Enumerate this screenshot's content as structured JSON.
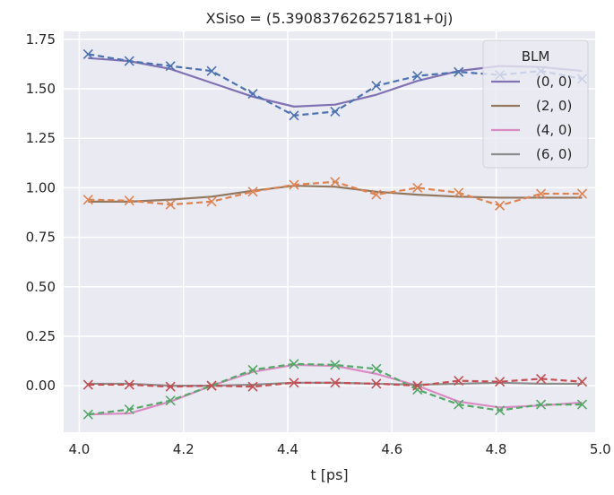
{
  "chart_data": {
    "type": "line",
    "title": "XSiso = (5.390837626257181+0j)",
    "xlabel": "t [ps]",
    "ylabel": "",
    "xlim": [
      3.97,
      4.99
    ],
    "ylim": [
      -0.235,
      1.79
    ],
    "x_ticks": [
      4.0,
      4.2,
      4.4,
      4.6,
      4.8,
      5.0
    ],
    "x_tick_labels": [
      "4.0",
      "4.2",
      "4.4",
      "4.6",
      "4.8",
      "5.0"
    ],
    "y_ticks": [
      0.0,
      0.25,
      0.5,
      0.75,
      1.0,
      1.25,
      1.5,
      1.75
    ],
    "y_tick_labels": [
      "0.00",
      "0.25",
      "0.50",
      "0.75",
      "1.00",
      "1.25",
      "1.50",
      "1.75"
    ],
    "grid": true,
    "background_color": "#eaeaf2",
    "legend": {
      "title": "BLM",
      "position": "top-right",
      "entries": [
        {
          "label": "(0, 0)",
          "color": "#8172b3"
        },
        {
          "label": "(2, 0)",
          "color": "#937860"
        },
        {
          "label": "(4, 0)",
          "color": "#da8bc3"
        },
        {
          "label": "(6, 0)",
          "color": "#8c8c8c"
        }
      ]
    },
    "x": [
      4.017,
      4.096,
      4.175,
      4.254,
      4.333,
      4.412,
      4.491,
      4.57,
      4.649,
      4.728,
      4.807,
      4.886,
      4.965
    ],
    "series": [
      {
        "name": "(0, 0)",
        "style": "solid",
        "color": "#8172b3",
        "values": [
          1.655,
          1.64,
          1.6,
          1.53,
          1.46,
          1.41,
          1.42,
          1.47,
          1.54,
          1.59,
          1.615,
          1.61,
          1.59
        ]
      },
      {
        "name": "",
        "style": "dashed-x",
        "color": "#4c72b0",
        "values": [
          1.675,
          1.64,
          1.615,
          1.59,
          1.475,
          1.365,
          1.385,
          1.515,
          1.565,
          1.585,
          1.57,
          1.59,
          1.55
        ]
      },
      {
        "name": "(2, 0)",
        "style": "solid",
        "color": "#937860",
        "values": [
          0.93,
          0.93,
          0.94,
          0.955,
          0.985,
          1.01,
          1.005,
          0.98,
          0.965,
          0.955,
          0.95,
          0.95,
          0.95
        ]
      },
      {
        "name": "",
        "style": "dashed-x",
        "color": "#dd8452",
        "values": [
          0.94,
          0.935,
          0.915,
          0.93,
          0.98,
          1.015,
          1.03,
          0.965,
          1.0,
          0.975,
          0.91,
          0.97,
          0.97
        ]
      },
      {
        "name": "(4, 0)",
        "style": "solid",
        "color": "#da8bc3",
        "values": [
          -0.145,
          -0.14,
          -0.08,
          0.0,
          0.07,
          0.105,
          0.1,
          0.06,
          0.0,
          -0.08,
          -0.11,
          -0.1,
          -0.085
        ]
      },
      {
        "name": "",
        "style": "dashed-x",
        "color": "#55a868",
        "values": [
          -0.145,
          -0.12,
          -0.075,
          0.0,
          0.08,
          0.11,
          0.105,
          0.085,
          -0.02,
          -0.095,
          -0.125,
          -0.095,
          -0.095
        ]
      },
      {
        "name": "(6, 0)",
        "style": "solid",
        "color": "#8c8c8c",
        "values": [
          0.01,
          0.01,
          0.0,
          0.0,
          0.005,
          0.015,
          0.015,
          0.01,
          0.005,
          0.01,
          0.015,
          0.01,
          0.01
        ]
      },
      {
        "name": "",
        "style": "dashed-x",
        "color": "#c44e52",
        "values": [
          0.005,
          0.005,
          -0.005,
          0.0,
          -0.005,
          0.015,
          0.015,
          0.01,
          0.0,
          0.025,
          0.02,
          0.035,
          0.02
        ]
      }
    ]
  }
}
